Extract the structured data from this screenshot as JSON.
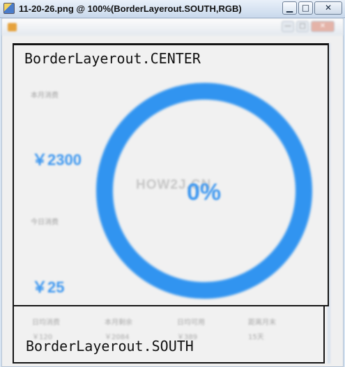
{
  "window": {
    "title": "11-20-26.png @ 100%(BorderLayerout.SOUTH,RGB)",
    "controls": {
      "minimize": "▁",
      "maximize": "□",
      "close": "✕"
    }
  },
  "frame": {
    "controls": {
      "minimize": "—",
      "maximize": "□",
      "close": "✕"
    }
  },
  "center": {
    "region_label": "BorderLayerout.CENTER",
    "month_caption": "本月消费",
    "month_value": "￥2300",
    "today_caption": "今日消费",
    "today_value": "￥25",
    "watermark": "HOW2J.CN",
    "progress_text": "0%",
    "progress": 0,
    "ring_color": "#3194f0",
    "accent_color": "#3d97f0"
  },
  "south": {
    "region_label": "BorderLayerout.SOUTH",
    "items": [
      {
        "label": "日均消费",
        "value": "￥120"
      },
      {
        "label": "本月剩余",
        "value": "￥2084"
      },
      {
        "label": "日均可用",
        "value": "￥389"
      },
      {
        "label": "距离月末",
        "value": "15天"
      }
    ]
  }
}
